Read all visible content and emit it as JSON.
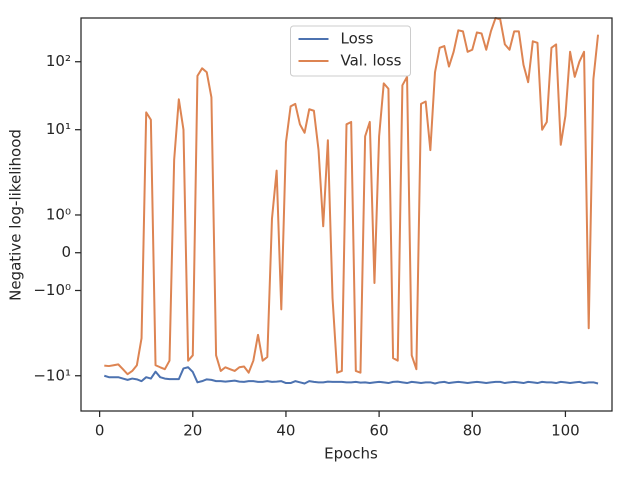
{
  "chart_data": {
    "type": "line",
    "x_label": "Epochs",
    "y_label": "Negative log-likelihood",
    "x": [
      1,
      2,
      3,
      4,
      5,
      6,
      7,
      8,
      9,
      10,
      11,
      12,
      13,
      14,
      15,
      16,
      17,
      18,
      19,
      20,
      21,
      22,
      23,
      24,
      25,
      26,
      27,
      28,
      29,
      30,
      31,
      32,
      33,
      34,
      35,
      36,
      37,
      38,
      39,
      40,
      41,
      42,
      43,
      44,
      45,
      46,
      47,
      48,
      49,
      50,
      51,
      52,
      53,
      54,
      55,
      56,
      57,
      58,
      59,
      60,
      61,
      62,
      63,
      64,
      65,
      66,
      67,
      68,
      69,
      70,
      71,
      72,
      73,
      74,
      75,
      76,
      77,
      78,
      79,
      80,
      81,
      82,
      83,
      84,
      85,
      86,
      87,
      88,
      89,
      90,
      91,
      92,
      93,
      94,
      95,
      96,
      97,
      98,
      99,
      100,
      101,
      102,
      103,
      104,
      105,
      106,
      107
    ],
    "series": [
      {
        "name": "Loss",
        "color": "#4c72b0",
        "values": [
          -10,
          -10.5,
          -10.5,
          -10.5,
          -11,
          -11.5,
          -11,
          -11.3,
          -12,
          -10.5,
          -11,
          -8.7,
          -10.5,
          -11,
          -11.2,
          -11.2,
          -11.2,
          -7.8,
          -7.5,
          -8.8,
          -12.5,
          -12,
          -11.3,
          -11.5,
          -12,
          -12,
          -12.2,
          -12,
          -11.8,
          -12.2,
          -12.3,
          -12,
          -12,
          -12.3,
          -12.3,
          -12,
          -12.3,
          -12.2,
          -12,
          -12.8,
          -12.8,
          -12,
          -12.5,
          -13,
          -12,
          -12.3,
          -12.5,
          -12.5,
          -12.2,
          -12.3,
          -12.3,
          -12.3,
          -12.5,
          -12.5,
          -12.3,
          -12.6,
          -12.5,
          -12.8,
          -12.5,
          -12.3,
          -12.5,
          -12.8,
          -12.3,
          -12.2,
          -12.5,
          -12.8,
          -12.3,
          -12.5,
          -12.8,
          -12.5,
          -12.5,
          -13,
          -12.5,
          -12.3,
          -12.8,
          -12.5,
          -12.3,
          -12.5,
          -12.8,
          -12.5,
          -12.3,
          -12.5,
          -12.8,
          -12.5,
          -12.3,
          -12.3,
          -12.8,
          -12.5,
          -12.3,
          -12.5,
          -12.8,
          -12.3,
          -12.5,
          -12.8,
          -12.3,
          -12.5,
          -12.5,
          -12.8,
          -12.3,
          -12.5,
          -12.8,
          -12.5,
          -12.3,
          -12.8,
          -12.5,
          -12.5,
          -13
        ]
      },
      {
        "name": "Val. loss",
        "color": "#dd8452",
        "values": [
          -7.1,
          -7.2,
          -7,
          -6.8,
          -8,
          -9.5,
          -8.5,
          -7,
          -2.8,
          18,
          14,
          -7,
          -7.5,
          -8,
          -6,
          3.6,
          28,
          10,
          -6,
          -5,
          62,
          80,
          70,
          30,
          -5,
          -8.5,
          -7.5,
          -8,
          -8.5,
          -7.5,
          -7.3,
          -9,
          -6,
          -2.5,
          -6,
          -5.3,
          0.9,
          2.5,
          -1.5,
          6.5,
          22,
          24,
          12,
          9,
          20,
          19,
          5,
          0.7,
          7,
          -1.2,
          -9,
          -8.5,
          12,
          13,
          -8.5,
          -9,
          8,
          13,
          -0.8,
          8,
          48,
          40,
          -5.5,
          -6,
          45,
          60,
          -5,
          -8,
          24,
          26,
          5,
          70,
          160,
          170,
          85,
          140,
          290,
          280,
          140,
          150,
          270,
          260,
          150,
          280,
          440,
          420,
          180,
          150,
          280,
          280,
          90,
          50,
          200,
          190,
          10,
          13,
          160,
          180,
          6,
          16,
          140,
          60,
          100,
          140,
          -2,
          55,
          250
        ]
      }
    ],
    "xlim": [
      -4,
      110
    ],
    "xticks": [
      0,
      20,
      40,
      60,
      80,
      100
    ],
    "yscale": "symlog",
    "linthresh": 2,
    "ylim": [
      -33,
      440
    ],
    "yticks": [
      {
        "value": -10,
        "label": "−10¹"
      },
      {
        "value": -1,
        "label": "−10⁰"
      },
      0,
      {
        "value": 1,
        "label": "10⁰"
      },
      {
        "value": 10,
        "label": "10¹"
      },
      {
        "value": 100,
        "label": "10²"
      }
    ],
    "legend": "upper center"
  }
}
